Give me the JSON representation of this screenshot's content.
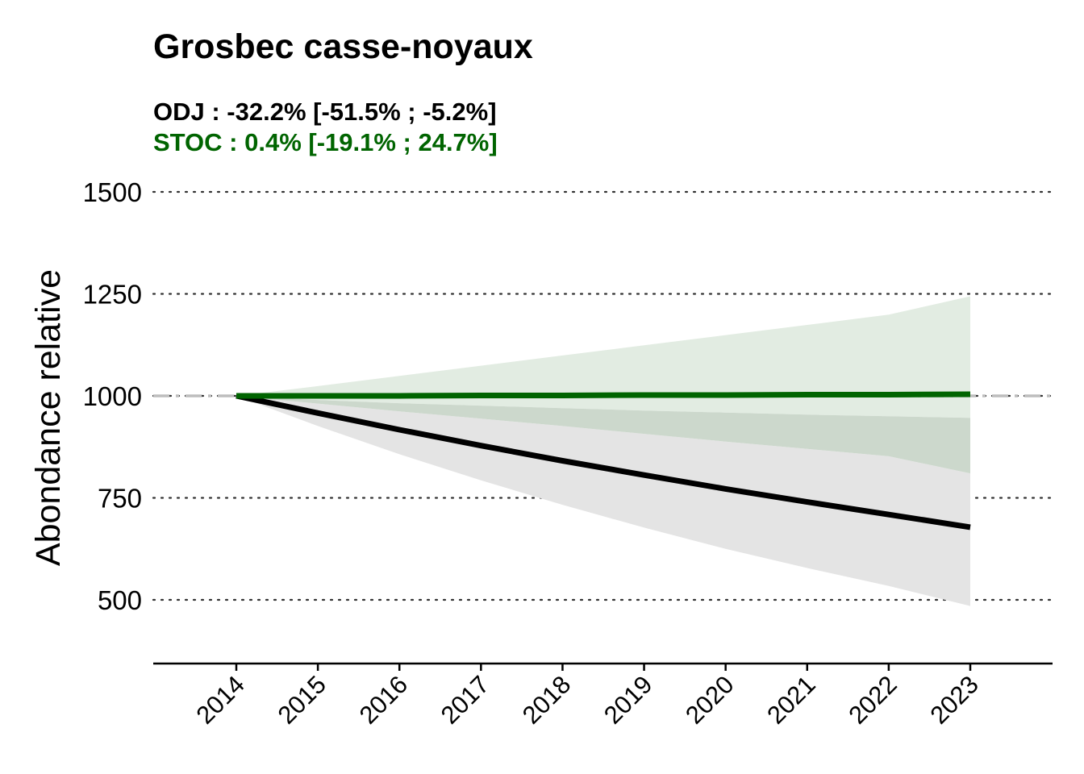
{
  "chart_data": {
    "type": "line",
    "title": "Grosbec casse-noyaux",
    "subtitles": [
      {
        "text": "ODJ : -32.2% [-51.5% ; -5.2%]",
        "color": "#000000"
      },
      {
        "text": "STOC : 0.4% [-19.1% ; 24.7%]",
        "color": "#006400"
      }
    ],
    "xlabel": "",
    "ylabel": "Abondance relative",
    "x": [
      2014,
      2015,
      2016,
      2017,
      2018,
      2019,
      2020,
      2021,
      2022,
      2023
    ],
    "xlim": [
      2013,
      2024
    ],
    "ylim": [
      350,
      1500
    ],
    "yticks": [
      500,
      750,
      1000,
      1250,
      1500
    ],
    "grid": "horizontal dotted",
    "reference_line": 1000,
    "series": [
      {
        "name": "STOC",
        "color": "#006400",
        "band_color": "#e2ece2",
        "values": [
          1000,
          1000,
          1000,
          1001,
          1001,
          1002,
          1002,
          1003,
          1003,
          1004
        ],
        "lower": [
          1000,
          990,
          982,
          976,
          970,
          964,
          959,
          954,
          950,
          946
        ],
        "upper": [
          1000,
          1024,
          1049,
          1074,
          1099,
          1124,
          1149,
          1174,
          1199,
          1244
        ]
      },
      {
        "name": "ODJ",
        "color": "#000000",
        "band_color": "#e4e4e4",
        "overlap_color": "#ccd8cc",
        "values": [
          1000,
          958,
          917,
          878,
          841,
          806,
          772,
          740,
          709,
          678
        ],
        "lower": [
          1000,
          926,
          857,
          793,
          733,
          677,
          625,
          578,
          534,
          485
        ],
        "upper": [
          1000,
          981,
          962,
          944,
          926,
          907,
          888,
          870,
          852,
          810
        ]
      }
    ]
  }
}
